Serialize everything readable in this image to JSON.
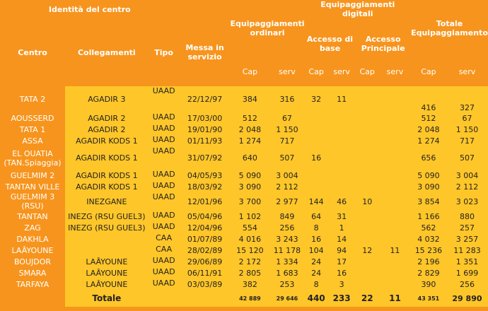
{
  "headers": {
    "identita": "Identità del centro",
    "centro": "Centro",
    "collegamenti": "Collegamenti",
    "tipo": "Tipo",
    "messa": "Messa in servizio",
    "ordinari": "Equipaggiamenti ordinari",
    "digitali": "Equipaggiamenti digitali",
    "accesso_base": "Accesso di base",
    "accesso_principale": "Accesso Principale",
    "totale_eq": "Totale Equipaggiamento",
    "cap": "Cap",
    "serv": "serv"
  },
  "rows": [
    {
      "centro": "TATA 2",
      "coll": "AGADIR 3",
      "tipo": "UAAD",
      "messa": "22/12/97",
      "ocap": "384",
      "oserv": "316",
      "bcap": "32",
      "bserv": "11",
      "pcap": "",
      "pserv": "",
      "tcap": "416",
      "tserv": "327"
    },
    {
      "centro": "AOUSSERD",
      "coll": "AGADIR 2",
      "tipo": "UAAD",
      "messa": "17/03/00",
      "ocap": "512",
      "oserv": "67",
      "bcap": "",
      "bserv": "",
      "pcap": "",
      "pserv": "",
      "tcap": "512",
      "tserv": "67"
    },
    {
      "centro": "TATA 1",
      "coll": "AGADIR 2",
      "tipo": "UAAD",
      "messa": "19/01/90",
      "ocap": "2 048",
      "oserv": "1 150",
      "bcap": "",
      "bserv": "",
      "pcap": "",
      "pserv": "",
      "tcap": "2 048",
      "tserv": "1 150"
    },
    {
      "centro": "ASSA",
      "coll": "AGADIR KODS 1",
      "tipo": "UAAD",
      "messa": "01/11/93",
      "ocap": "1 274",
      "oserv": "717",
      "bcap": "",
      "bserv": "",
      "pcap": "",
      "pserv": "",
      "tcap": "1 274",
      "tserv": "717"
    },
    {
      "centro": "EL OUATIA (TAN.Spiaggia)",
      "coll": "AGADIR KODS 1",
      "tipo": "UAAD",
      "messa": "31/07/92",
      "ocap": "640",
      "oserv": "507",
      "bcap": "16",
      "bserv": "",
      "pcap": "",
      "pserv": "",
      "tcap": "656",
      "tserv": "507"
    },
    {
      "centro": "GUELMIM 2",
      "coll": "AGADIR KODS 1",
      "tipo": "UAAD",
      "messa": "04/05/93",
      "ocap": "5 090",
      "oserv": "3 004",
      "bcap": "",
      "bserv": "",
      "pcap": "",
      "pserv": "",
      "tcap": "5 090",
      "tserv": "3 004"
    },
    {
      "centro": "TANTAN VILLE",
      "coll": "AGADIR KODS 1",
      "tipo": "UAAD",
      "messa": "18/03/92",
      "ocap": "3 090",
      "oserv": "2 112",
      "bcap": "",
      "bserv": "",
      "pcap": "",
      "pserv": "",
      "tcap": "3 090",
      "tserv": "2 112"
    },
    {
      "centro": "GUELMIM 3 (RSU)",
      "coll": "INEZGANE",
      "tipo": "UAAD",
      "messa": "12/01/96",
      "ocap": "3 700",
      "oserv": "2 977",
      "bcap": "144",
      "bserv": "46",
      "pcap": "10",
      "pserv": "",
      "tcap": "3 854",
      "tserv": "3 023"
    },
    {
      "centro": "TANTAN",
      "coll": "INEZG (RSU GUEL3)",
      "tipo": "UAAD",
      "messa": "05/04/96",
      "ocap": "1 102",
      "oserv": "849",
      "bcap": "64",
      "bserv": "31",
      "pcap": "",
      "pserv": "",
      "tcap": "1 166",
      "tserv": "880"
    },
    {
      "centro": "ZAG",
      "coll": "INEZG (RSU GUEL3)",
      "tipo": "UAAD",
      "messa": "12/04/96",
      "ocap": "554",
      "oserv": "256",
      "bcap": "8",
      "bserv": "1",
      "pcap": "",
      "pserv": "",
      "tcap": "562",
      "tserv": "257"
    },
    {
      "centro": "DAKHLA",
      "coll": "",
      "tipo": "CAA",
      "messa": "01/07/89",
      "ocap": "4 016",
      "oserv": "3 243",
      "bcap": "16",
      "bserv": "14",
      "pcap": "",
      "pserv": "",
      "tcap": "4 032",
      "tserv": "3 257"
    },
    {
      "centro": "LAÂYOUNE",
      "coll": "",
      "tipo": "CAA",
      "messa": "28/02/89",
      "ocap": "15 120",
      "oserv": "11 178",
      "bcap": "104",
      "bserv": "94",
      "pcap": "12",
      "pserv": "11",
      "tcap": "15 236",
      "tserv": "11 283"
    },
    {
      "centro": "BOUJDOR",
      "coll": "LAÂYOUNE",
      "tipo": "UAAD",
      "messa": "29/06/89",
      "ocap": "2 172",
      "oserv": "1 334",
      "bcap": "24",
      "bserv": "17",
      "pcap": "",
      "pserv": "",
      "tcap": "2 196",
      "tserv": "1 351"
    },
    {
      "centro": "SMARA",
      "coll": "LAÂYOUNE",
      "tipo": "UAAD",
      "messa": "06/11/91",
      "ocap": "2 805",
      "oserv": "1 683",
      "bcap": "24",
      "bserv": "16",
      "pcap": "",
      "pserv": "",
      "tcap": "2 829",
      "tserv": "1 699"
    },
    {
      "centro": "TARFAYA",
      "coll": "LAÂYOUNE",
      "tipo": "UAAD",
      "messa": "03/03/89",
      "ocap": "382",
      "oserv": "253",
      "bcap": "8",
      "bserv": "3",
      "pcap": "",
      "pserv": "",
      "tcap": "390",
      "tserv": "256"
    }
  ],
  "totale": {
    "label": "Totale",
    "ocap": "42 889",
    "oserv": "29 646",
    "bcap": "440",
    "bserv": "233",
    "pcap": "22",
    "pserv": "11",
    "tcap": "43 351",
    "tserv": "29 890"
  },
  "colors": {
    "orange": "#f7941d",
    "yellow": "#ffc629"
  }
}
